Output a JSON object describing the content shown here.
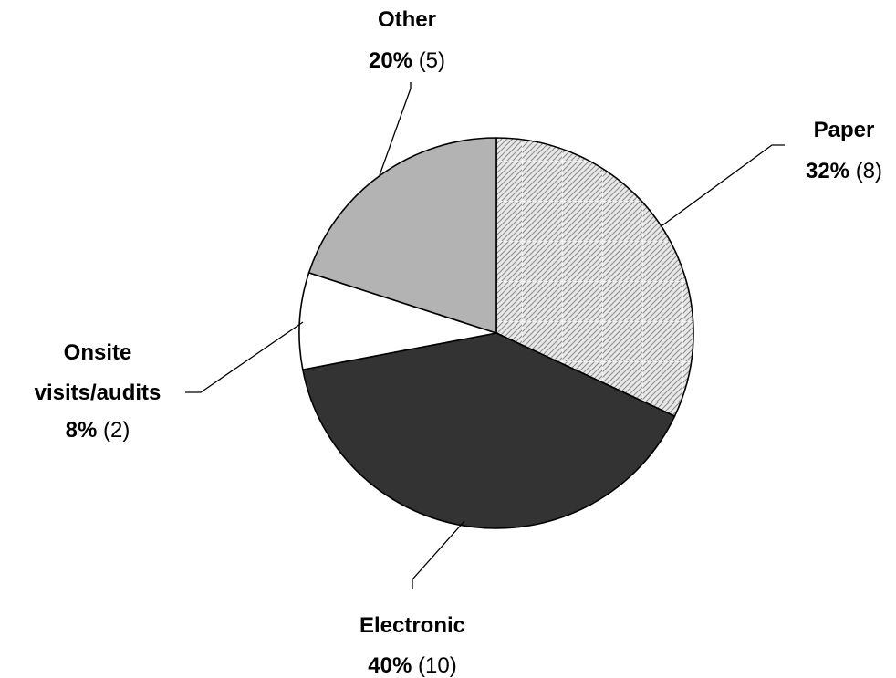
{
  "chart_data": {
    "type": "pie",
    "title": "",
    "start_angle_deg": 0,
    "direction": "clockwise",
    "slices": [
      {
        "name": "Paper",
        "percent_label": "32%",
        "count_label": "(8)",
        "value": 8,
        "fill": "hatched-gray"
      },
      {
        "name": "Electronic",
        "percent_label": "40%",
        "count_label": "(10)",
        "value": 10,
        "fill": "#333333"
      },
      {
        "name": "Onsite visits/audits",
        "name_lines": [
          "Onsite",
          "visits/audits"
        ],
        "percent_label": "8%",
        "count_label": "(2)",
        "value": 2,
        "fill": "#ffffff"
      },
      {
        "name": "Other",
        "percent_label": "20%",
        "count_label": "(5)",
        "value": 5,
        "fill": "#b3b3b3"
      }
    ]
  }
}
